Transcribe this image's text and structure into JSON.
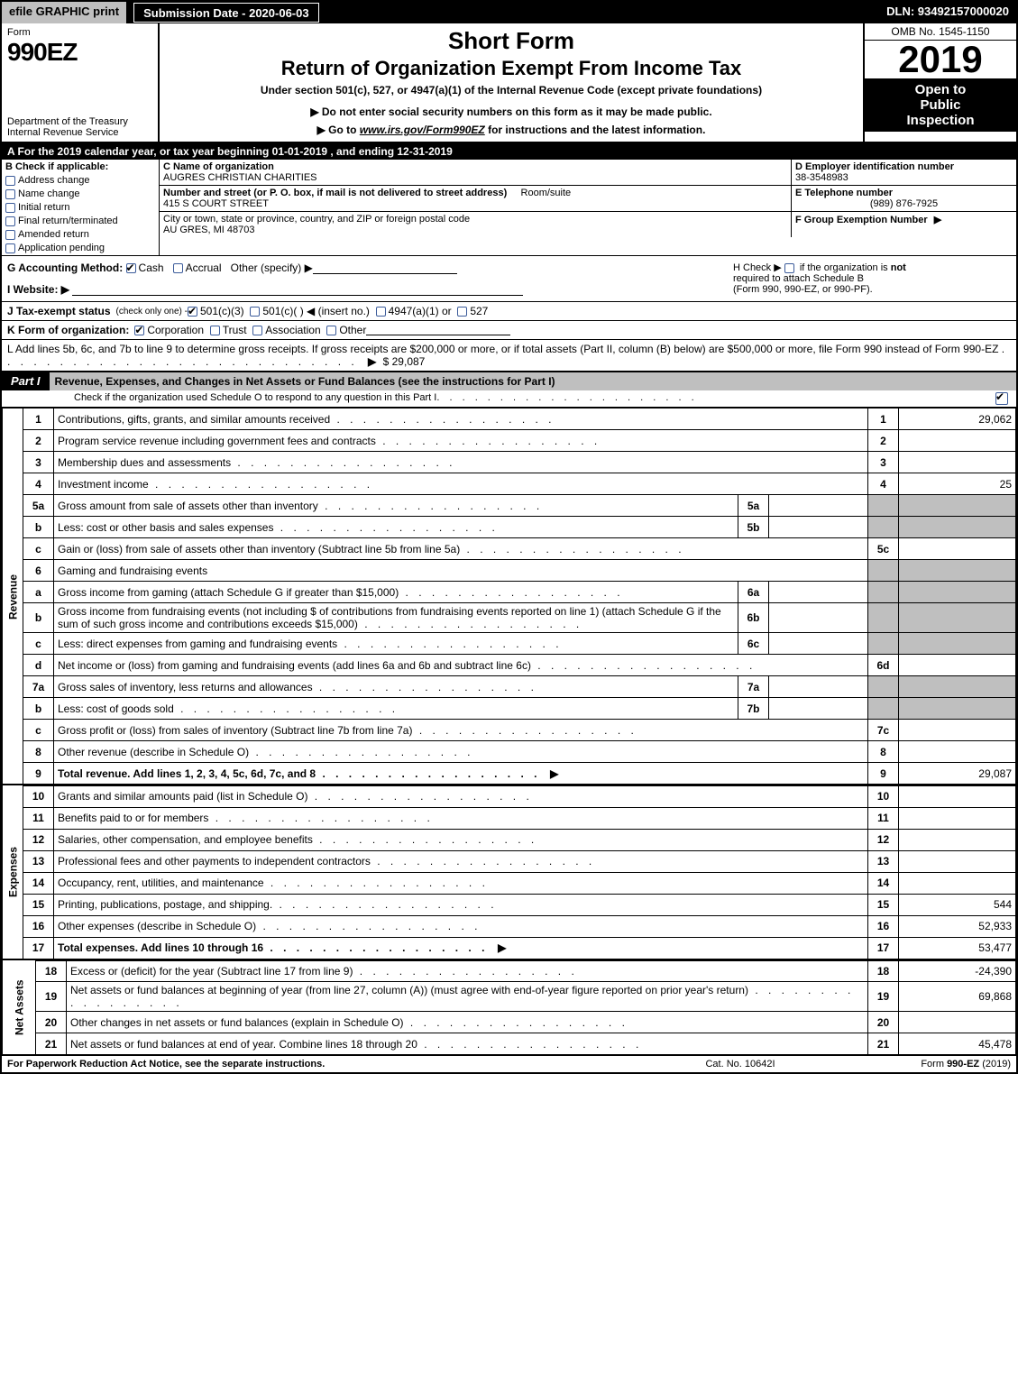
{
  "topbar": {
    "efile": "efile GRAPHIC print",
    "submission": "Submission Date - 2020-06-03",
    "dln": "DLN: 93492157000020"
  },
  "header": {
    "form_word": "Form",
    "form_no": "990EZ",
    "dept1": "Department of the Treasury",
    "dept2": "Internal Revenue Service",
    "title1": "Short Form",
    "title2": "Return of Organization Exempt From Income Tax",
    "subtitle": "Under section 501(c), 527, or 4947(a)(1) of the Internal Revenue Code (except private foundations)",
    "note_ssn": "▶ Do not enter social security numbers on this form as it may be made public.",
    "note_link_pre": "▶ Go to ",
    "note_link": "www.irs.gov/Form990EZ",
    "note_link_post": " for instructions and the latest information.",
    "omb": "OMB No. 1545-1150",
    "year_prefix": "20",
    "year_bold": "19",
    "inspect1": "Open to",
    "inspect2": "Public",
    "inspect3": "Inspection"
  },
  "rowA": "A  For the 2019 calendar year, or tax year beginning 01-01-2019 , and ending 12-31-2019",
  "sectionB": {
    "header": "B  Check if applicable:",
    "opts": [
      "Address change",
      "Name change",
      "Initial return",
      "Final return/terminated",
      "Amended return",
      "Application pending"
    ]
  },
  "sectionC": {
    "label": "C Name of organization",
    "name": "AUGRES CHRISTIAN CHARITIES",
    "street_label": "Number and street (or P. O. box, if mail is not delivered to street address)",
    "room_label": "Room/suite",
    "street": "415 S COURT STREET",
    "city_label": "City or town, state or province, country, and ZIP or foreign postal code",
    "city": "AU GRES, MI  48703"
  },
  "sectionD": {
    "label": "D Employer identification number",
    "value": "38-3548983"
  },
  "sectionE": {
    "label": "E Telephone number",
    "value": "(989) 876-7925"
  },
  "sectionF": {
    "label": "F Group Exemption Number",
    "arrow": "▶"
  },
  "rowG": {
    "label": "G Accounting Method:",
    "opts": [
      "Cash",
      "Accrual",
      "Other (specify) ▶"
    ],
    "checked": 0
  },
  "rowH": {
    "text1": "H   Check ▶",
    "text2": "if the organization is ",
    "not": "not",
    "text3": "required to attach Schedule B",
    "text4": "(Form 990, 990-EZ, or 990-PF)."
  },
  "rowI": {
    "label": "I Website: ▶"
  },
  "rowJ": {
    "label": "J Tax-exempt status ",
    "note": "(check only one) - ",
    "opts": [
      "501(c)(3)",
      "501(c)(  ) ◀ (insert no.)",
      "4947(a)(1) or",
      "527"
    ],
    "checked": 0
  },
  "rowK": {
    "label": "K Form of organization:",
    "opts": [
      "Corporation",
      "Trust",
      "Association",
      "Other"
    ],
    "checked": 0
  },
  "rowL": {
    "text": "L Add lines 5b, 6c, and 7b to line 9 to determine gross receipts. If gross receipts are $200,000 or more, or if total assets (Part II, column (B) below) are $500,000 or more, file Form 990 instead of Form 990-EZ",
    "arrow": "▶",
    "amount": "$ 29,087"
  },
  "partI": {
    "tag": "Part I",
    "title": "Revenue, Expenses, and Changes in Net Assets or Fund Balances (see the instructions for Part I)",
    "subtitle": "Check if the organization used Schedule O to respond to any question in this Part I",
    "checked": true
  },
  "sections": {
    "revenue_label": "Revenue",
    "expenses_label": "Expenses",
    "netassets_label": "Net Assets"
  },
  "lines": [
    {
      "n": "1",
      "desc": "Contributions, gifts, grants, and similar amounts received",
      "col": "1",
      "val": "29,062"
    },
    {
      "n": "2",
      "desc": "Program service revenue including government fees and contracts",
      "col": "2",
      "val": ""
    },
    {
      "n": "3",
      "desc": "Membership dues and assessments",
      "col": "3",
      "val": ""
    },
    {
      "n": "4",
      "desc": "Investment income",
      "col": "4",
      "val": "25"
    },
    {
      "n": "5a",
      "desc": "Gross amount from sale of assets other than inventory",
      "sub": "5a",
      "subval": ""
    },
    {
      "n": "b",
      "desc": "Less: cost or other basis and sales expenses",
      "sub": "5b",
      "subval": ""
    },
    {
      "n": "c",
      "desc": "Gain or (loss) from sale of assets other than inventory (Subtract line 5b from line 5a)",
      "col": "5c",
      "val": ""
    },
    {
      "n": "6",
      "desc": "Gaming and fundraising events",
      "nobox": true
    },
    {
      "n": "a",
      "desc": "Gross income from gaming (attach Schedule G if greater than $15,000)",
      "sub": "6a",
      "subval": ""
    },
    {
      "n": "b",
      "desc": "Gross income from fundraising events (not including $                     of contributions from fundraising events reported on line 1) (attach Schedule G if the sum of such gross income and contributions exceeds $15,000)",
      "sub": "6b",
      "subval": ""
    },
    {
      "n": "c",
      "desc": "Less: direct expenses from gaming and fundraising events",
      "sub": "6c",
      "subval": ""
    },
    {
      "n": "d",
      "desc": "Net income or (loss) from gaming and fundraising events (add lines 6a and 6b and subtract line 6c)",
      "col": "6d",
      "val": ""
    },
    {
      "n": "7a",
      "desc": "Gross sales of inventory, less returns and allowances",
      "sub": "7a",
      "subval": ""
    },
    {
      "n": "b",
      "desc": "Less: cost of goods sold",
      "sub": "7b",
      "subval": ""
    },
    {
      "n": "c",
      "desc": "Gross profit or (loss) from sales of inventory (Subtract line 7b from line 7a)",
      "col": "7c",
      "val": ""
    },
    {
      "n": "8",
      "desc": "Other revenue (describe in Schedule O)",
      "col": "8",
      "val": ""
    },
    {
      "n": "9",
      "desc": "Total revenue. Add lines 1, 2, 3, 4, 5c, 6d, 7c, and 8",
      "col": "9",
      "val": "29,087",
      "bold": true,
      "arrow": true
    }
  ],
  "expense_lines": [
    {
      "n": "10",
      "desc": "Grants and similar amounts paid (list in Schedule O)",
      "col": "10",
      "val": ""
    },
    {
      "n": "11",
      "desc": "Benefits paid to or for members",
      "col": "11",
      "val": ""
    },
    {
      "n": "12",
      "desc": "Salaries, other compensation, and employee benefits",
      "col": "12",
      "val": ""
    },
    {
      "n": "13",
      "desc": "Professional fees and other payments to independent contractors",
      "col": "13",
      "val": ""
    },
    {
      "n": "14",
      "desc": "Occupancy, rent, utilities, and maintenance",
      "col": "14",
      "val": ""
    },
    {
      "n": "15",
      "desc": "Printing, publications, postage, and shipping.",
      "col": "15",
      "val": "544"
    },
    {
      "n": "16",
      "desc": "Other expenses (describe in Schedule O)",
      "col": "16",
      "val": "52,933"
    },
    {
      "n": "17",
      "desc": "Total expenses. Add lines 10 through 16",
      "col": "17",
      "val": "53,477",
      "bold": true,
      "arrow": true
    }
  ],
  "netasset_lines": [
    {
      "n": "18",
      "desc": "Excess or (deficit) for the year (Subtract line 17 from line 9)",
      "col": "18",
      "val": "-24,390"
    },
    {
      "n": "19",
      "desc": "Net assets or fund balances at beginning of year (from line 27, column (A)) (must agree with end-of-year figure reported on prior year's return)",
      "col": "19",
      "val": "69,868"
    },
    {
      "n": "20",
      "desc": "Other changes in net assets or fund balances (explain in Schedule O)",
      "col": "20",
      "val": ""
    },
    {
      "n": "21",
      "desc": "Net assets or fund balances at end of year. Combine lines 18 through 20",
      "col": "21",
      "val": "45,478"
    }
  ],
  "footer": {
    "left": "For Paperwork Reduction Act Notice, see the separate instructions.",
    "mid": "Cat. No. 10642I",
    "right": "Form 990-EZ (2019)",
    "right_bold": "990-EZ"
  },
  "colors": {
    "black": "#000000",
    "grey": "#bfbfbf",
    "checkbox_border": "#3b5b9a"
  }
}
